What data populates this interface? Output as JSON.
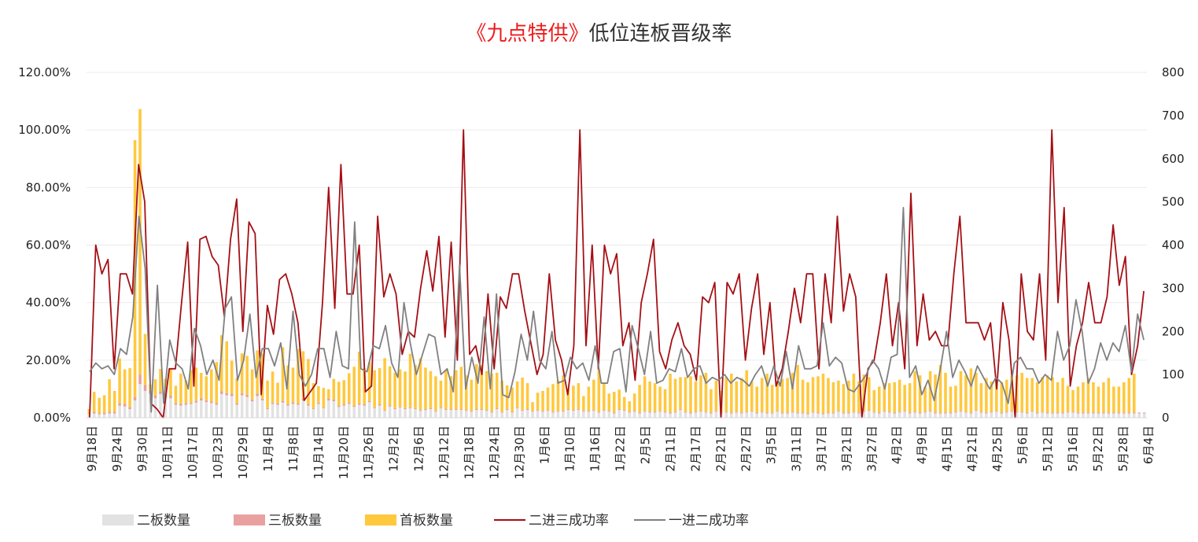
{
  "chart_data": {
    "type": "bar+line",
    "title_highlight": "《九点特供》",
    "title_rest": "低位连板晋级率",
    "y_left_ticks": [
      "0.00%",
      "20.00%",
      "40.00%",
      "60.00%",
      "80.00%",
      "100.00%",
      "120.00%"
    ],
    "y_left_range": [
      0,
      1.2
    ],
    "y_right_ticks": [
      "0",
      "100",
      "200",
      "300",
      "400",
      "500",
      "600",
      "700",
      "800"
    ],
    "y_right_range": [
      0,
      800
    ],
    "x_tick_labels": [
      "9月18日",
      "9月24日",
      "9月30日",
      "10月11日",
      "10月17日",
      "10月23日",
      "10月29日",
      "11月4日",
      "11月8日",
      "11月14日",
      "11月20日",
      "11月26日",
      "12月2日",
      "12月6日",
      "12月12日",
      "12月18日",
      "12月24日",
      "12月30日",
      "1月6日",
      "1月10日",
      "1月16日",
      "1月22日",
      "2月5日",
      "2月11日",
      "2月17日",
      "2月21日",
      "2月27日",
      "3月5日",
      "3月11日",
      "3月17日",
      "3月21日",
      "3月27日",
      "4月2日",
      "4月9日",
      "4月15日",
      "4月21日",
      "4月25日",
      "5月6日",
      "5月12日",
      "5月16日",
      "5月22日",
      "5月28日",
      "6月4日"
    ],
    "grid": true,
    "legend_position": "bottom",
    "colors": {
      "二板数量": "#e2e2e2",
      "三板数量": "#e8a0a0",
      "首板数量": "#ffc83d",
      "二进三成功率": "#a50f15",
      "一进二成功率": "#808080"
    },
    "series": [
      {
        "name": "二板数量",
        "kind": "stacked-bar",
        "axis": "right",
        "values": [
          8,
          10,
          8,
          8,
          10,
          10,
          28,
          26,
          20,
          40,
          78,
          62,
          55,
          45,
          55,
          47,
          45,
          30,
          28,
          30,
          32,
          35,
          40,
          36,
          34,
          30,
          55,
          52,
          50,
          30,
          52,
          48,
          38,
          50,
          40,
          20,
          32,
          30,
          35,
          28,
          32,
          30,
          40,
          28,
          20,
          32,
          22,
          40,
          38,
          25,
          28,
          32,
          25,
          30,
          28,
          36,
          22,
          28,
          16,
          26,
          20,
          24,
          20,
          22,
          20,
          16,
          18,
          20,
          14,
          22,
          18,
          18,
          18,
          18,
          16,
          14,
          18,
          18,
          16,
          12,
          20,
          12,
          18,
          12,
          22,
          16,
          18,
          14,
          16,
          14,
          16,
          12,
          14,
          14,
          18,
          16,
          18,
          14,
          14,
          16,
          12,
          16,
          14,
          10,
          18,
          16,
          12,
          14,
          10,
          14,
          12,
          12,
          14,
          12,
          10,
          12,
          18,
          12,
          10,
          12,
          14,
          12,
          10,
          14,
          10,
          12,
          10,
          12,
          10,
          12,
          14,
          10,
          12,
          10,
          10,
          14,
          10,
          10,
          12,
          10,
          10,
          8,
          12,
          10,
          8,
          10,
          10,
          14,
          10,
          10,
          12,
          10,
          14,
          16,
          12,
          10,
          14,
          12,
          10,
          12,
          14,
          10,
          12,
          10,
          12,
          14,
          10,
          10,
          10,
          10,
          12,
          14,
          12,
          10,
          16,
          12,
          10,
          12,
          14,
          10,
          12,
          14,
          12,
          12,
          10,
          14,
          10,
          12,
          10,
          10,
          10,
          10,
          12,
          12,
          10,
          10,
          10,
          10,
          10,
          10,
          10,
          10,
          10,
          10,
          10,
          10,
          10,
          10
        ]
      },
      {
        "name": "三板数量",
        "kind": "stacked-bar",
        "axis": "right",
        "values": [
          0,
          4,
          2,
          3,
          4,
          4,
          6,
          6,
          5,
          8,
          22,
          14,
          8,
          6,
          6,
          5,
          6,
          4,
          4,
          4,
          3,
          4,
          6,
          4,
          4,
          4,
          6,
          5,
          6,
          4,
          5,
          5,
          4,
          6,
          4,
          2,
          3,
          3,
          4,
          3,
          4,
          3,
          4,
          3,
          2,
          3,
          2,
          4,
          4,
          3,
          3,
          3,
          3,
          3,
          3,
          3,
          2,
          3,
          2,
          3,
          2,
          2,
          2,
          2,
          2,
          2,
          2,
          2,
          2,
          2,
          2,
          2,
          2,
          2,
          2,
          2,
          2,
          2,
          2,
          2,
          2,
          2,
          2,
          2,
          2,
          2,
          2,
          2,
          2,
          2,
          2,
          2,
          2,
          2,
          2,
          2,
          2,
          2,
          2,
          2,
          2,
          2,
          2,
          2,
          2,
          2,
          2,
          2,
          2,
          2,
          2,
          2,
          2,
          2,
          2,
          2,
          2,
          2,
          2,
          2,
          2,
          2,
          2,
          2,
          2,
          2,
          2,
          2,
          2,
          2,
          2,
          2,
          2,
          2,
          2,
          2,
          2,
          2,
          2,
          2,
          2,
          2,
          2,
          2,
          2,
          2,
          2,
          2,
          2,
          2,
          2,
          2,
          2,
          2,
          2,
          2,
          2,
          2,
          2,
          2,
          2,
          2,
          2,
          2,
          2,
          2,
          2,
          2,
          2,
          2,
          2,
          2,
          2,
          2,
          2,
          2,
          2,
          2,
          2,
          2,
          2,
          2,
          2,
          2,
          2,
          2,
          2,
          2,
          2,
          2,
          2,
          2,
          2,
          2,
          2,
          2,
          2,
          2,
          2,
          2,
          2,
          2,
          2,
          2,
          2,
          2,
          2,
          2,
          2,
          2
        ]
      },
      {
        "name": "首板数量",
        "kind": "stacked-bar",
        "axis": "right",
        "values": [
          12,
          46,
          36,
          41,
          75,
          48,
          103,
          80,
          90,
          595,
          615,
          118,
          14,
          38,
          52,
          38,
          63,
          40,
          70,
          52,
          75,
          77,
          58,
          56,
          74,
          95,
          130,
          120,
          76,
          58,
          92,
          90,
          70,
          100,
          104,
          64,
          72,
          48,
          124,
          90,
          80,
          126,
          110,
          105,
          58,
          38,
          45,
          22,
          48,
          55,
          56,
          68,
          90,
          120,
          84,
          90,
          86,
          84,
          120,
          90,
          82,
          86,
          85,
          124,
          100,
          120,
          96,
          86,
          80,
          62,
          90,
          76,
          90,
          98,
          80,
          72,
          104,
          102,
          90,
          88,
          82,
          72,
          55,
          56,
          60,
          75,
          60,
          20,
          40,
          46,
          52,
          64,
          70,
          82,
          48,
          56,
          60,
          34,
          56,
          70,
          98,
          64,
          40,
          48,
          45,
          30,
          24,
          40,
          64,
          80,
          70,
          66,
          56,
          52,
          90,
          76,
          74,
          80,
          84,
          70,
          82,
          90,
          54,
          70,
          50,
          80,
          90,
          70,
          80,
          96,
          68,
          60,
          78,
          90,
          64,
          70,
          78,
          80,
          90,
          110,
          76,
          72,
          80,
          84,
          92,
          80,
          70,
          70,
          66,
          74,
          88,
          72,
          84,
          76,
          50,
          60,
          64,
          66,
          70,
          74,
          60,
          68,
          94,
          86,
          58,
          92,
          88,
          110,
          92,
          60,
          60,
          92,
          84,
          102,
          86,
          66,
          80,
          70,
          72,
          70,
          74,
          80,
          84,
          90,
          80,
          76,
          70,
          80,
          86,
          82,
          70,
          80,
          60,
          50,
          60,
          70,
          80,
          70,
          60,
          70,
          80,
          60,
          60,
          70,
          80,
          90
        ]
      },
      {
        "name": "二进三成功率",
        "kind": "line",
        "axis": "left",
        "values": [
          0,
          0.6,
          0.5,
          0.55,
          0.17,
          0.5,
          0.5,
          0.43,
          0.88,
          0.75,
          0.05,
          0.03,
          0,
          0.17,
          0.17,
          0.4,
          0.61,
          0.11,
          0.62,
          0.63,
          0.56,
          0.53,
          0.35,
          0.62,
          0.76,
          0.3,
          0.68,
          0.64,
          0.08,
          0.39,
          0.29,
          0.48,
          0.5,
          0.43,
          0.33,
          0.06,
          0.09,
          0.12,
          0.4,
          0.8,
          0.38,
          0.88,
          0.43,
          0.43,
          0.6,
          0.09,
          0.11,
          0.7,
          0.42,
          0.5,
          0.43,
          0.22,
          0.3,
          0.28,
          0.45,
          0.58,
          0.44,
          0.63,
          0.28,
          0.61,
          0.2,
          1.0,
          0.22,
          0.25,
          0.15,
          0.43,
          0.17,
          0.42,
          0.38,
          0.5,
          0.5,
          0.37,
          0.26,
          0.15,
          0.22,
          0.5,
          0.27,
          0.2,
          0.08,
          0.25,
          1.0,
          0.25,
          0.6,
          0.17,
          0.6,
          0.5,
          0.57,
          0.25,
          0.33,
          0.13,
          0.4,
          0.5,
          0.62,
          0.23,
          0.17,
          0.27,
          0.33,
          0.25,
          0.22,
          0.13,
          0.42,
          0.4,
          0.47,
          0,
          0.47,
          0.43,
          0.5,
          0.2,
          0.38,
          0.5,
          0.22,
          0.4,
          0.11,
          0.17,
          0.3,
          0.45,
          0.33,
          0.5,
          0.5,
          0.17,
          0.5,
          0.33,
          0.7,
          0.37,
          0.5,
          0.42,
          0,
          0.17,
          0.2,
          0.33,
          0.5,
          0.25,
          0.4,
          0.17,
          0.78,
          0.25,
          0.43,
          0.27,
          0.3,
          0.25,
          0.25,
          0.5,
          0.7,
          0.33,
          0.33,
          0.33,
          0.27,
          0.33,
          0.1,
          0.4,
          0.27,
          0,
          0.5,
          0.3,
          0.27,
          0.5,
          0.2,
          1.0,
          0.4,
          0.73,
          0.11,
          0.25,
          0.33,
          0.47,
          0.33,
          0.33,
          0.42,
          0.67,
          0.46,
          0.56,
          0.15,
          0.25,
          0.44
        ]
      },
      {
        "name": "一进二成功率",
        "kind": "line",
        "axis": "left",
        "values": [
          0.16,
          0.19,
          0.17,
          0.18,
          0.15,
          0.24,
          0.22,
          0.35,
          0.7,
          0.52,
          0.02,
          0.46,
          0.05,
          0.27,
          0.19,
          0.17,
          0.1,
          0.31,
          0.25,
          0.15,
          0.2,
          0.13,
          0.38,
          0.42,
          0.13,
          0.2,
          0.36,
          0.14,
          0.24,
          0.24,
          0.18,
          0.26,
          0.1,
          0.37,
          0.15,
          0.11,
          0.15,
          0.24,
          0.24,
          0.14,
          0.3,
          0.18,
          0.17,
          0.68,
          0.17,
          0.16,
          0.25,
          0.24,
          0.32,
          0.19,
          0.14,
          0.4,
          0.26,
          0.15,
          0.22,
          0.29,
          0.28,
          0.15,
          0.17,
          0.09,
          0.53,
          0.1,
          0.21,
          0.12,
          0.35,
          0.1,
          0.43,
          0.08,
          0.07,
          0.16,
          0.29,
          0.2,
          0.37,
          0.2,
          0.17,
          0.3,
          0.12,
          0.13,
          0.21,
          0.17,
          0.19,
          0.13,
          0.25,
          0.12,
          0.12,
          0.23,
          0.24,
          0.09,
          0.32,
          0.24,
          0.15,
          0.3,
          0.12,
          0.13,
          0.17,
          0.16,
          0.24,
          0.14,
          0.17,
          0.18,
          0.12,
          0.14,
          0.13,
          0.15,
          0.12,
          0.14,
          0.13,
          0.11,
          0.15,
          0.18,
          0.11,
          0.18,
          0.11,
          0.23,
          0.1,
          0.25,
          0.17,
          0.17,
          0.18,
          0.33,
          0.18,
          0.21,
          0.19,
          0.1,
          0.09,
          0.12,
          0.15,
          0.2,
          0.17,
          0.1,
          0.21,
          0.22,
          0.73,
          0.14,
          0.18,
          0.08,
          0.13,
          0.06,
          0.17,
          0.3,
          0.14,
          0.2,
          0.16,
          0.11,
          0.18,
          0.14,
          0.1,
          0.14,
          0.12,
          0.05,
          0.19,
          0.21,
          0.17,
          0.17,
          0.12,
          0.15,
          0.13,
          0.3,
          0.2,
          0.25,
          0.41,
          0.3,
          0.12,
          0.17,
          0.26,
          0.2,
          0.26,
          0.23,
          0.32,
          0.16,
          0.36,
          0.27
        ]
      }
    ],
    "legend": [
      "二板数量",
      "三板数量",
      "首板数量",
      "二进三成功率",
      "一进二成功率"
    ]
  }
}
